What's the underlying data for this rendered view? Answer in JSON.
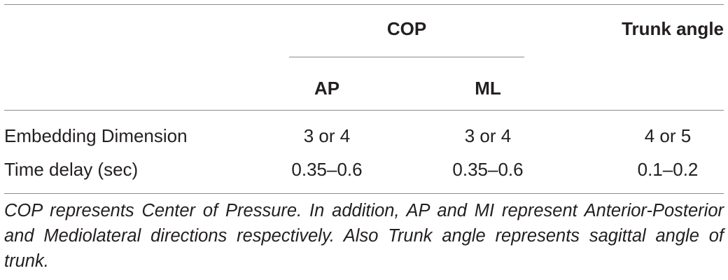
{
  "table": {
    "headers": {
      "group_cop": "COP",
      "group_trunk": "Trunk angle",
      "sub_ap": "AP",
      "sub_ml": "ML"
    },
    "rows": [
      {
        "label": "Embedding Dimension",
        "ap": "3 or 4",
        "ml": "3 or 4",
        "trunk": "4 or 5"
      },
      {
        "label": "Time delay (sec)",
        "ap": "0.35–0.6",
        "ml": "0.35–0.6",
        "trunk": "0.1–0.2"
      }
    ]
  },
  "footnote": "COP represents Center of Pressure. In addition, AP and MI represent Anterior-Posterior and Mediolateral directions respectively. Also Trunk angle represents sagittal angle of trunk."
}
